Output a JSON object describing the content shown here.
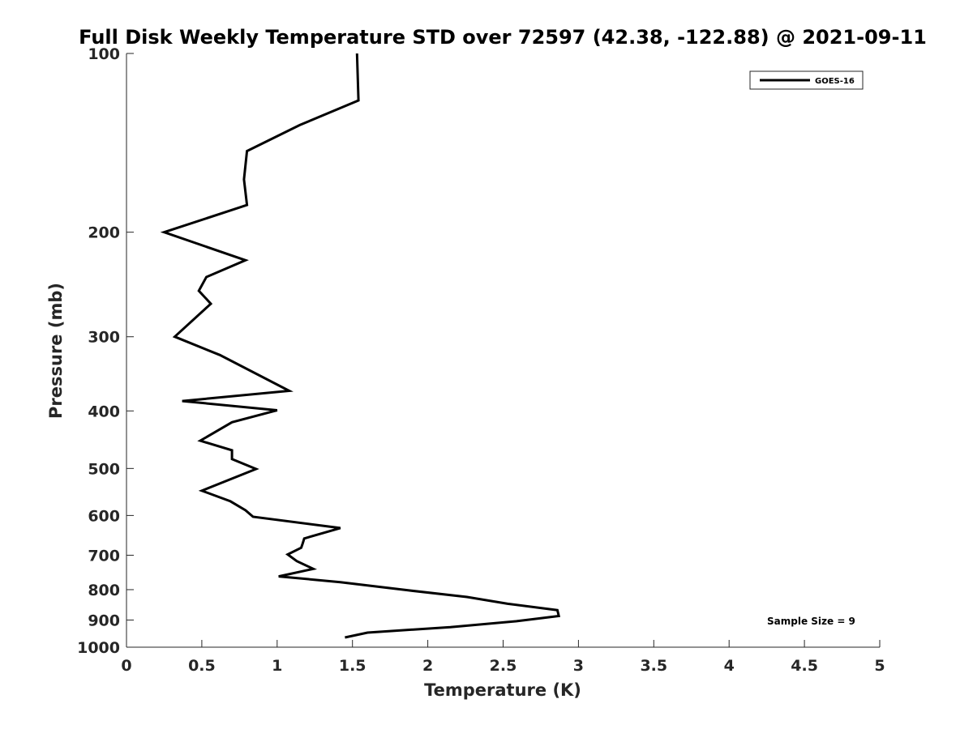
{
  "chart_data": {
    "type": "line",
    "title": "Full Disk Weekly Temperature STD over 72597 (42.38, -122.88) @ 2021-09-11",
    "xlabel": "Temperature (K)",
    "ylabel": "Pressure (mb)",
    "xlim": [
      0,
      5
    ],
    "ylim": [
      100,
      1000
    ],
    "yscale": "log",
    "y_reversed": true,
    "grid": false,
    "legend_position": "top-right",
    "x_ticks": [
      "0",
      "0.5",
      "1",
      "1.5",
      "2",
      "2.5",
      "3",
      "3.5",
      "4",
      "4.5",
      "5"
    ],
    "y_ticks": [
      "100",
      "200",
      "300",
      "400",
      "500",
      "600",
      "700",
      "800",
      "900",
      "1000"
    ],
    "series": [
      {
        "name": "GOES-16",
        "color": "#000000",
        "x": [
          1.53,
          1.54,
          1.15,
          0.8,
          0.78,
          0.8,
          0.25,
          0.79,
          0.53,
          0.48,
          0.56,
          0.32,
          0.62,
          1.08,
          0.37,
          1.0,
          0.7,
          0.49,
          0.7,
          0.7,
          0.86,
          0.5,
          0.69,
          0.79,
          0.84,
          1.42,
          1.18,
          1.17,
          1.16,
          1.07,
          1.13,
          1.24,
          1.01,
          1.42,
          1.87,
          2.26,
          2.53,
          2.86,
          2.87,
          2.59,
          2.15,
          1.6,
          1.45
        ],
        "y": [
          100,
          120,
          132,
          146,
          163,
          180,
          200,
          223,
          238,
          251,
          264,
          300,
          322,
          370,
          385,
          399,
          418,
          449,
          466,
          482,
          501,
          545,
          568,
          588,
          603,
          630,
          656,
          668,
          680,
          698,
          716,
          738,
          760,
          777,
          802,
          823,
          845,
          866,
          886,
          904,
          925,
          945,
          963
        ]
      }
    ],
    "annotation": "Sample Size = 9"
  }
}
